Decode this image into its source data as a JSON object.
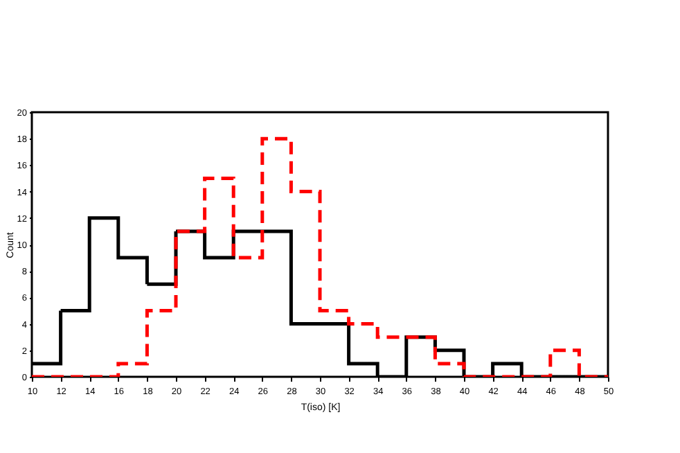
{
  "chart_data": {
    "type": "histogram",
    "xlabel": "T(iso) [K]",
    "ylabel": "Count",
    "bins": [
      10,
      12,
      14,
      16,
      18,
      20,
      22,
      24,
      26,
      28,
      30,
      32,
      34,
      36,
      38,
      40,
      42,
      44,
      46,
      48,
      50
    ],
    "series": [
      {
        "color": "#000000",
        "line_style": "solid",
        "values": [
          1,
          5,
          12,
          9,
          7,
          11,
          9,
          11,
          11,
          4,
          4,
          1,
          0,
          3,
          2,
          0,
          1,
          0,
          0,
          0
        ]
      },
      {
        "color": "#ff0000",
        "line_style": "dashed",
        "values": [
          0,
          0,
          0,
          1,
          5,
          11,
          15,
          9,
          18,
          14,
          5,
          4,
          3,
          3,
          1,
          0,
          0,
          0,
          2,
          0
        ]
      }
    ],
    "xlim": [
      10,
      50
    ],
    "xticks": [
      10,
      12,
      14,
      16,
      18,
      20,
      22,
      24,
      26,
      28,
      30,
      32,
      34,
      36,
      38,
      40,
      42,
      44,
      46,
      48,
      50
    ],
    "ylim": [
      0,
      20
    ],
    "yticks": [
      0,
      2,
      4,
      6,
      8,
      10,
      12,
      14,
      16,
      18,
      20
    ]
  }
}
